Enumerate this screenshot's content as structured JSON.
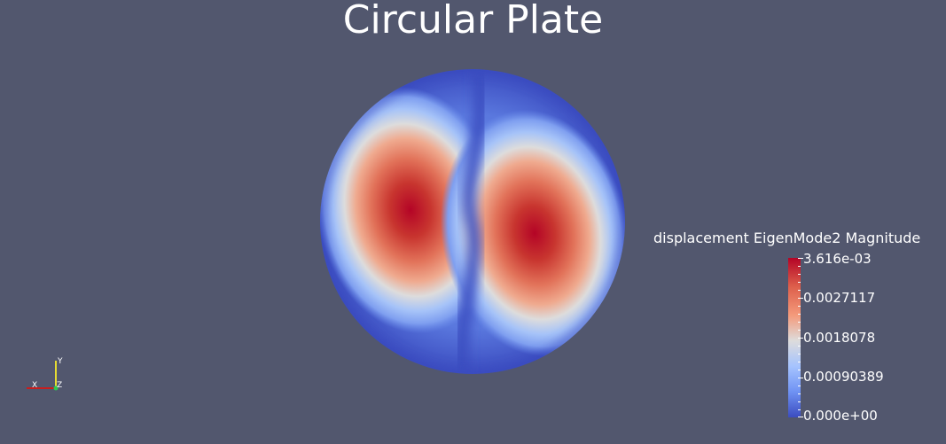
{
  "view": {
    "title": "Circular Plate",
    "background": "#52576e"
  },
  "scalar_bar": {
    "title": "displacement EigenMode2 Magnitude",
    "labels": [
      "3.616e-03",
      "0.0027117",
      "0.0018078",
      "0.00090389",
      "0.000e+00"
    ],
    "range": [
      0.0,
      0.003616
    ],
    "colormap": "cool-to-warm",
    "color_high": "#b40426",
    "color_mid": "#dddcdc",
    "color_low": "#3b4cc0"
  },
  "orientation_axes": {
    "x_label": "X",
    "y_label": "Y",
    "z_label": "Z",
    "x_color": "#c81e1e",
    "y_color": "#e6dc32",
    "z_color": "#2dc850"
  }
}
